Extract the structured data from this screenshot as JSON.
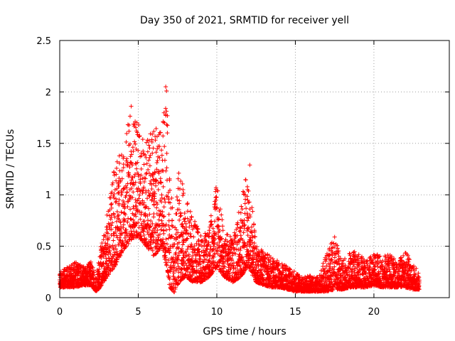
{
  "chart_data": {
    "type": "scatter",
    "title": "Day 350 of 2021, SRMTID for receiver yell",
    "xlabel": "GPS time / hours",
    "ylabel": "SRMTID / TECUs",
    "xlim": [
      0,
      24.8
    ],
    "ylim": [
      0,
      2.5
    ],
    "x_ticks": [
      0,
      5,
      10,
      15,
      20
    ],
    "x_tick_labels": [
      "0",
      "5",
      "10",
      "15",
      "20"
    ],
    "y_ticks": [
      0,
      0.5,
      1,
      1.5,
      2,
      2.5
    ],
    "y_tick_labels": [
      "0",
      "0.5",
      "1",
      "1.5",
      "2",
      "2.5"
    ],
    "grid": true,
    "marker": "+",
    "marker_color": "#ff0000",
    "series": [
      {
        "name": "SRMTID",
        "envelope": {
          "note": "dense + markers; per-hour range of SRMTID values (TECU)",
          "x": [
            0,
            0.5,
            1,
            1.5,
            2,
            2.3,
            2.6,
            3,
            3.5,
            4,
            4.5,
            5,
            5.5,
            6,
            6.5,
            6.8,
            7,
            7.3,
            7.6,
            8,
            8.5,
            9,
            9.5,
            10,
            10.5,
            11,
            11.5,
            12,
            12.5,
            13,
            13.5,
            14,
            14.5,
            15,
            15.5,
            16,
            16.5,
            17,
            17.5,
            18,
            18.5,
            19,
            19.5,
            20,
            20.5,
            21,
            21.5,
            22,
            22.5,
            22.9
          ],
          "low": [
            0.1,
            0.1,
            0.1,
            0.12,
            0.12,
            0.06,
            0.1,
            0.2,
            0.3,
            0.45,
            0.55,
            0.6,
            0.5,
            0.4,
            0.5,
            0.3,
            0.1,
            0.05,
            0.15,
            0.2,
            0.15,
            0.15,
            0.2,
            0.3,
            0.2,
            0.15,
            0.2,
            0.3,
            0.15,
            0.12,
            0.1,
            0.1,
            0.08,
            0.06,
            0.06,
            0.06,
            0.06,
            0.06,
            0.08,
            0.08,
            0.1,
            0.1,
            0.1,
            0.12,
            0.1,
            0.1,
            0.1,
            0.1,
            0.08,
            0.08
          ],
          "high": [
            0.25,
            0.3,
            0.35,
            0.3,
            0.35,
            0.2,
            0.5,
            0.8,
            1.35,
            1.4,
            1.85,
            1.75,
            1.5,
            1.7,
            1.6,
            2.05,
            1.2,
            0.7,
            1.3,
            1.0,
            0.8,
            0.6,
            0.7,
            1.1,
            0.65,
            0.6,
            0.9,
            1.3,
            0.5,
            0.45,
            0.4,
            0.35,
            0.3,
            0.25,
            0.2,
            0.22,
            0.2,
            0.45,
            0.6,
            0.35,
            0.45,
            0.45,
            0.35,
            0.45,
            0.4,
            0.42,
            0.35,
            0.45,
            0.35,
            0.25
          ]
        },
        "labelled_peaks": {
          "x": [
            4.55,
            6.75,
            6.8,
            6.75,
            9.95,
            12.1,
            17.5
          ],
          "y": [
            1.86,
            2.05,
            2.01,
            1.78,
            1.07,
            1.29,
            0.59
          ]
        }
      }
    ]
  }
}
